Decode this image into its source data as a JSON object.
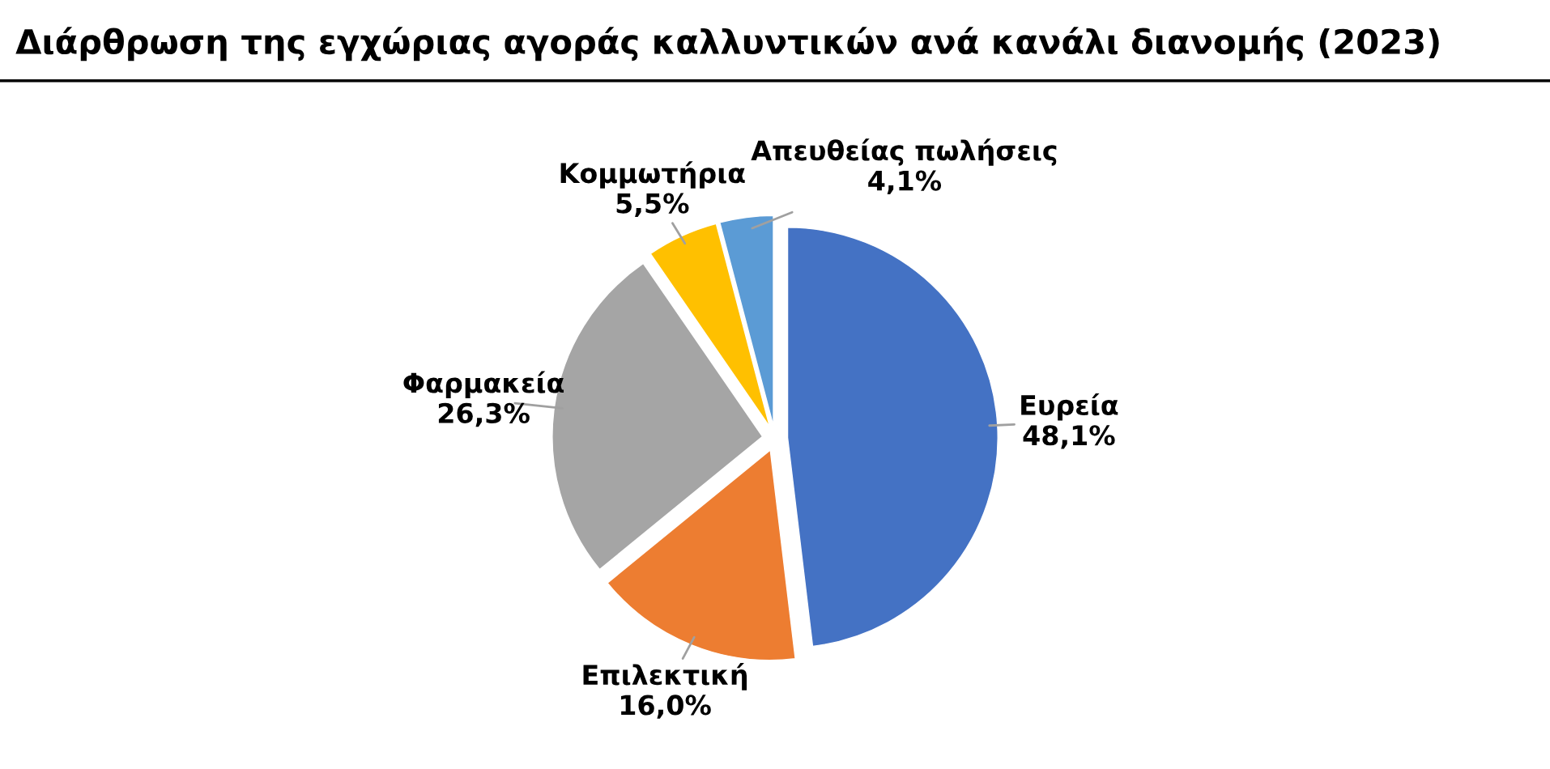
{
  "chart_data": {
    "type": "pie",
    "title": "Διάρθρωση της εγχώριας αγοράς καλλυντικών ανά κανάλι διανομής (2023)",
    "categories": [
      "Ευρεία",
      "Επιλεκτική",
      "Φαρμακεία",
      "Κομμωτήρια",
      "Απευθείας πωλήσεις"
    ],
    "values": [
      48.1,
      16.0,
      26.3,
      5.5,
      4.1
    ],
    "value_labels": [
      "48,1%",
      "16,0%",
      "26,3%",
      "5,5%",
      "4,1%"
    ],
    "colors": [
      "#4472c4",
      "#ed7d31",
      "#a5a5a5",
      "#ffc000",
      "#5b9bd5"
    ],
    "legend": false
  }
}
